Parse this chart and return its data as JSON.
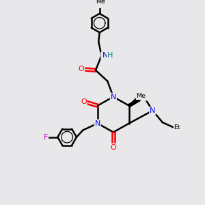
{
  "bg_color": "#e8e8eb",
  "line_color": "#000000",
  "bond_width": 1.8,
  "atom_colors": {
    "N": "#0000ff",
    "O": "#ff0000",
    "F": "#cc00cc",
    "H_col": "#008080",
    "C": "#000000"
  },
  "fig_w": 3.0,
  "fig_h": 3.0,
  "dpi": 100,
  "xlim": [
    0,
    10
  ],
  "ylim": [
    0,
    10
  ]
}
